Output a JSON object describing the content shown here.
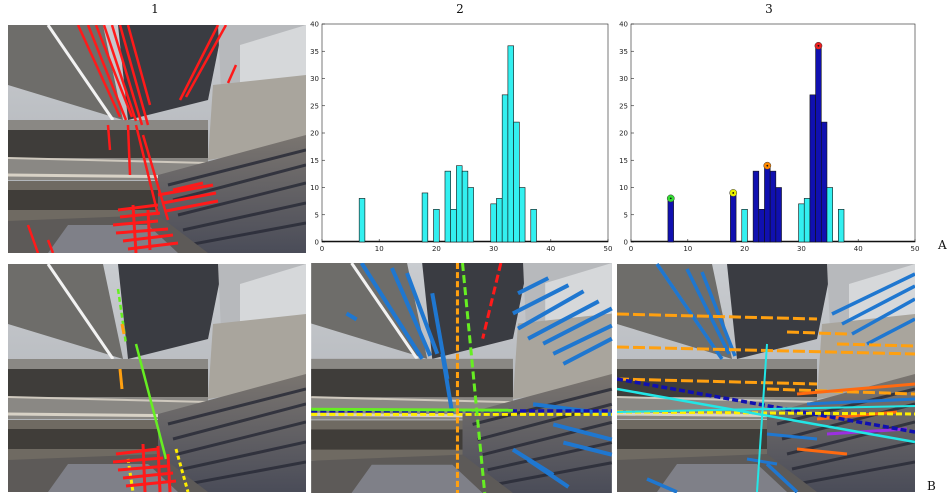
{
  "figure": {
    "column_labels": [
      "1",
      "2",
      "3"
    ],
    "row_labels": [
      "A",
      "B"
    ]
  },
  "colors": {
    "bar_light": "#33f0f0",
    "bar_dark": "#1010b0",
    "line_red": "#ff1a1a",
    "line_blue": "#1f77d0",
    "line_orange": "#ffa010",
    "line_green": "#66ee22",
    "line_yellow": "#ffee00",
    "line_cyan": "#22e6e6",
    "peak_red": "#ee2020",
    "peak_orange": "#ff8800",
    "peak_yellow": "#e8f000",
    "peak_green": "#33dd33"
  },
  "chart_data": [
    {
      "type": "bar",
      "panel": "A2",
      "x": [
        7,
        18,
        20,
        22,
        23,
        24,
        25,
        26,
        30,
        31,
        32,
        33,
        34,
        35,
        37
      ],
      "values": [
        8,
        9,
        6,
        13,
        6,
        14,
        13,
        10,
        7,
        8,
        27,
        36,
        22,
        10,
        6
      ],
      "xlim": [
        0,
        50
      ],
      "ylim": [
        0,
        40
      ],
      "xticks": [
        "0",
        "10",
        "20",
        "30",
        "40",
        "50"
      ],
      "yticks": [
        "0",
        "5",
        "10",
        "15",
        "20",
        "25",
        "30",
        "35",
        "40"
      ],
      "title": "",
      "xlabel": "",
      "ylabel": ""
    },
    {
      "type": "bar",
      "panel": "A3",
      "x": [
        7,
        18,
        20,
        22,
        23,
        24,
        25,
        26,
        30,
        31,
        32,
        33,
        34,
        35,
        37
      ],
      "values": [
        8,
        9,
        6,
        13,
        6,
        14,
        13,
        10,
        7,
        8,
        27,
        36,
        22,
        10,
        6
      ],
      "highlighted": [
        true,
        true,
        false,
        true,
        true,
        true,
        true,
        true,
        false,
        false,
        true,
        true,
        true,
        false,
        false
      ],
      "peaks": [
        {
          "x": 33,
          "y": 36,
          "color": "peak_red"
        },
        {
          "x": 24,
          "y": 14,
          "color": "peak_orange"
        },
        {
          "x": 18,
          "y": 9,
          "color": "peak_yellow"
        },
        {
          "x": 7,
          "y": 8,
          "color": "peak_green"
        }
      ],
      "xlim": [
        0,
        50
      ],
      "ylim": [
        0,
        40
      ],
      "xticks": [
        "0",
        "10",
        "20",
        "30",
        "40",
        "50"
      ],
      "yticks": [
        "0",
        "5",
        "10",
        "15",
        "20",
        "25",
        "30",
        "35",
        "40"
      ],
      "title": "",
      "xlabel": "",
      "ylabel": ""
    }
  ]
}
